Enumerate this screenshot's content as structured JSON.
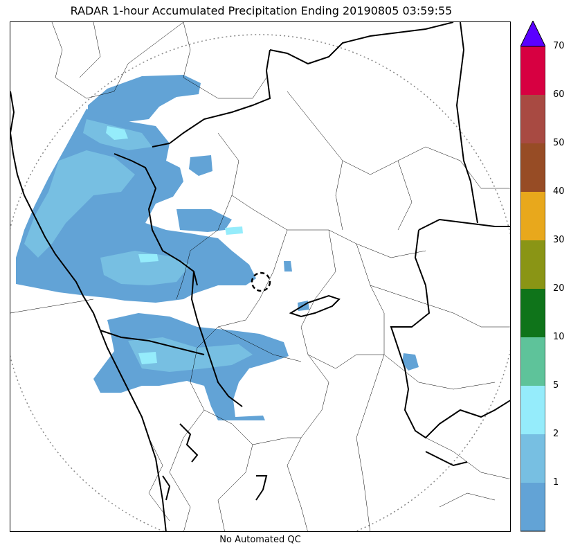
{
  "title": "RADAR 1-hour Accumulated Precipitation Ending 20190805 03:59:55",
  "footer": "No Automated QC",
  "colorbar": {
    "levels": [
      {
        "label": "",
        "color": "#62a3d6"
      },
      {
        "label": "1",
        "color": "#77bfe2"
      },
      {
        "label": "2",
        "color": "#95ecfb"
      },
      {
        "label": "5",
        "color": "#5ec39a"
      },
      {
        "label": "10",
        "color": "#0f741a"
      },
      {
        "label": "20",
        "color": "#8a9515"
      },
      {
        "label": "30",
        "color": "#e8a81c"
      },
      {
        "label": "40",
        "color": "#974c25"
      },
      {
        "label": "50",
        "color": "#a84a42"
      },
      {
        "label": "60",
        "color": "#d70041"
      },
      {
        "label": "70",
        "color": "#5a00ff"
      }
    ],
    "extend_color": "#5a00ff"
  },
  "map": {
    "range_ring_color": "#888888",
    "radar_site_marker": "dashed-circle",
    "boundary_color": "#000000"
  }
}
